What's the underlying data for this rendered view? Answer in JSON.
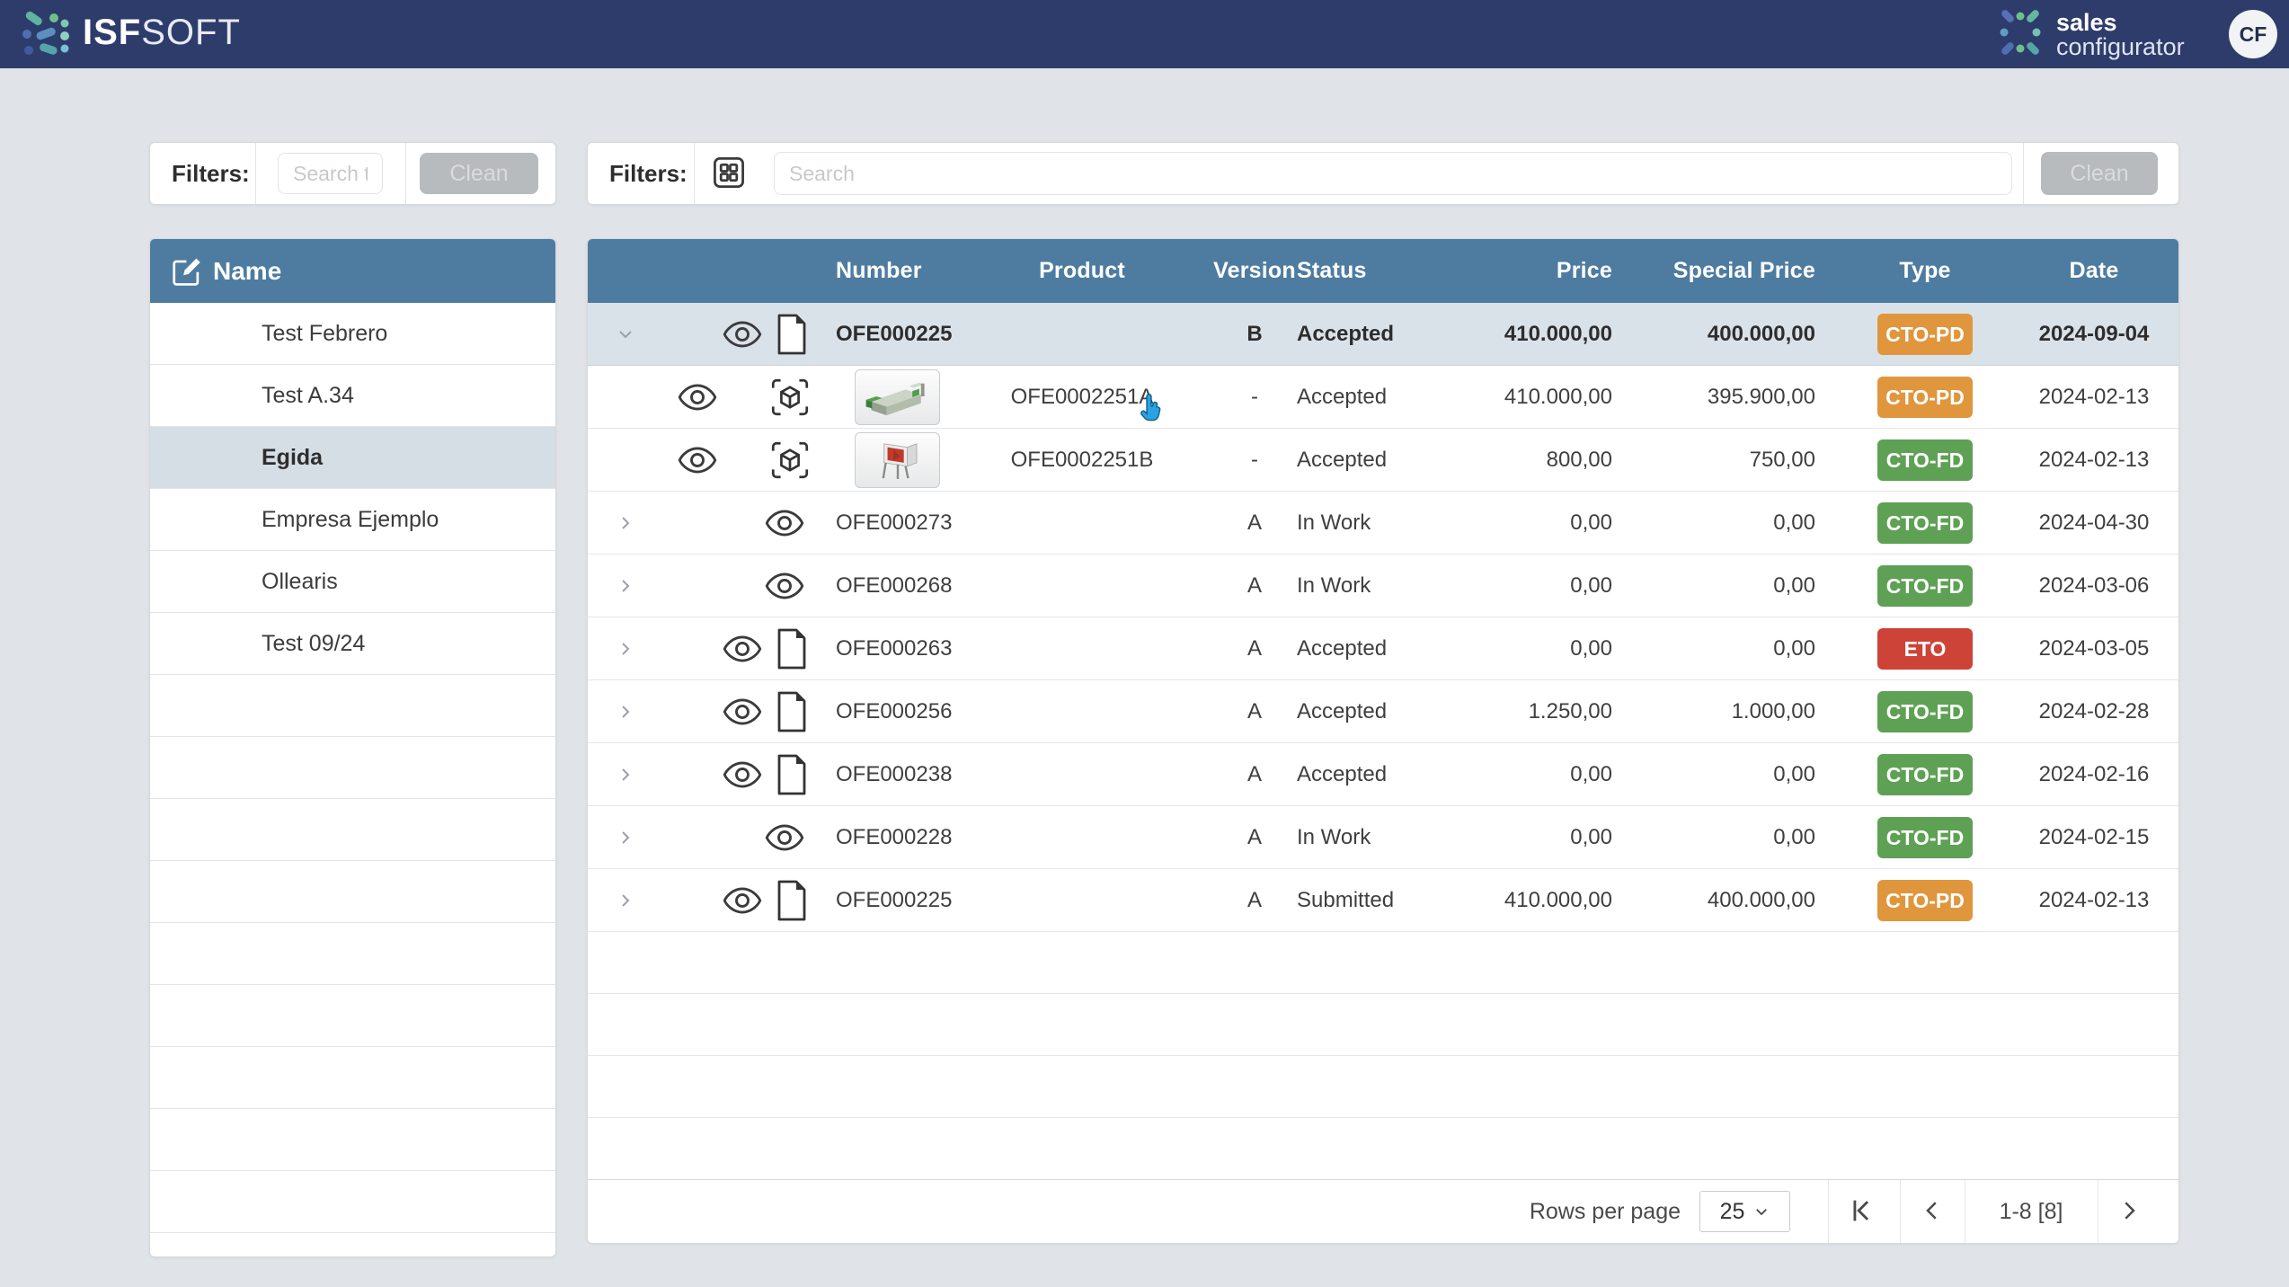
{
  "navbar": {
    "brand_bold": "ISF",
    "brand_light": "SOFT",
    "product_line1": "sales",
    "product_line2": "configurator",
    "avatar_initials": "CF"
  },
  "left_filters": {
    "label": "Filters:",
    "search_placeholder": "Search t",
    "clean_label": "Clean"
  },
  "customers": {
    "header": "Name",
    "items": [
      {
        "name": "Test Febrero",
        "selected": false
      },
      {
        "name": "Test A.34",
        "selected": false
      },
      {
        "name": "Egida",
        "selected": true
      },
      {
        "name": "Empresa Ejemplo",
        "selected": false
      },
      {
        "name": "Ollearis",
        "selected": false
      },
      {
        "name": "Test 09/24",
        "selected": false
      }
    ],
    "empty_rows": 9
  },
  "right_filters": {
    "label": "Filters:",
    "search_placeholder": "Search",
    "clean_label": "Clean"
  },
  "offers_table": {
    "columns": {
      "number": "Number",
      "product": "Product",
      "version": "Version",
      "status": "Status",
      "price": "Price",
      "special_price": "Special Price",
      "type": "Type",
      "date": "Date"
    },
    "rows": [
      {
        "kind": "parent",
        "expander": "down",
        "selected": true,
        "has_eye": true,
        "has_doc": true,
        "number": "OFE000225",
        "version": "B",
        "status": "Accepted",
        "price": "410.000,00",
        "special_price": "400.000,00",
        "type": "CTO-PD",
        "type_color": "orange",
        "date": "2024-09-04"
      },
      {
        "kind": "sub",
        "has_eye": true,
        "has_cube": true,
        "thumbnail": "machine",
        "product": "OFE0002251A",
        "version": "-",
        "status": "Accepted",
        "price": "410.000,00",
        "special_price": "395.900,00",
        "type": "CTO-PD",
        "type_color": "orange",
        "date": "2024-02-13"
      },
      {
        "kind": "sub",
        "has_eye": true,
        "has_cube": true,
        "thumbnail": "flag",
        "product": "OFE0002251B",
        "version": "-",
        "status": "Accepted",
        "price": "800,00",
        "special_price": "750,00",
        "type": "CTO-FD",
        "type_color": "green",
        "date": "2024-02-13"
      },
      {
        "kind": "parent",
        "expander": "right",
        "selected": false,
        "has_eye": true,
        "has_doc": false,
        "number": "OFE000273",
        "version": "A",
        "status": "In Work",
        "price": "0,00",
        "special_price": "0,00",
        "type": "CTO-FD",
        "type_color": "green",
        "date": "2024-04-30"
      },
      {
        "kind": "parent",
        "expander": "right",
        "selected": false,
        "has_eye": true,
        "has_doc": false,
        "number": "OFE000268",
        "version": "A",
        "status": "In Work",
        "price": "0,00",
        "special_price": "0,00",
        "type": "CTO-FD",
        "type_color": "green",
        "date": "2024-03-06"
      },
      {
        "kind": "parent",
        "expander": "right",
        "selected": false,
        "has_eye": true,
        "has_doc": true,
        "number": "OFE000263",
        "version": "A",
        "status": "Accepted",
        "price": "0,00",
        "special_price": "0,00",
        "type": "ETO",
        "type_color": "red",
        "date": "2024-03-05"
      },
      {
        "kind": "parent",
        "expander": "right",
        "selected": false,
        "has_eye": true,
        "has_doc": true,
        "number": "OFE000256",
        "version": "A",
        "status": "Accepted",
        "price": "1.250,00",
        "special_price": "1.000,00",
        "type": "CTO-FD",
        "type_color": "green",
        "date": "2024-02-28"
      },
      {
        "kind": "parent",
        "expander": "right",
        "selected": false,
        "has_eye": true,
        "has_doc": true,
        "number": "OFE000238",
        "version": "A",
        "status": "Accepted",
        "price": "0,00",
        "special_price": "0,00",
        "type": "CTO-FD",
        "type_color": "green",
        "date": "2024-02-16"
      },
      {
        "kind": "parent",
        "expander": "right",
        "selected": false,
        "has_eye": true,
        "has_doc": false,
        "number": "OFE000228",
        "version": "A",
        "status": "In Work",
        "price": "0,00",
        "special_price": "0,00",
        "type": "CTO-FD",
        "type_color": "green",
        "date": "2024-02-15"
      },
      {
        "kind": "parent",
        "expander": "right",
        "selected": false,
        "has_eye": true,
        "has_doc": true,
        "number": "OFE000225",
        "version": "A",
        "status": "Submitted",
        "price": "410.000,00",
        "special_price": "400.000,00",
        "type": "CTO-PD",
        "type_color": "orange",
        "date": "2024-02-13"
      }
    ],
    "empty_rows": 4
  },
  "pagination": {
    "rows_per_page_label": "Rows per page",
    "rows_per_page_value": "25",
    "range_label": "1-8 [8]"
  },
  "colors": {
    "navbar_bg": "#2d3c6b",
    "table_header_bg": "#4e7ca1",
    "selected_row_bg": "#dae2e9",
    "selected_customer_bg": "#d5dee4",
    "badge_orange": "#e0963d",
    "badge_green": "#5ea154",
    "badge_red": "#cd4337",
    "clean_button_bg": "#b8bbbd"
  }
}
